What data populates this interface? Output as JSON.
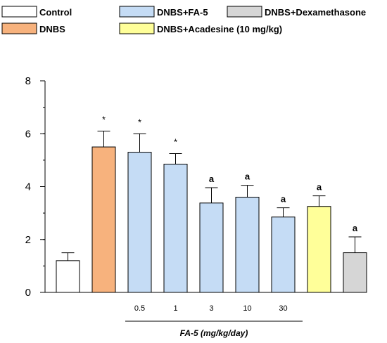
{
  "chart_data": {
    "type": "bar",
    "legend": [
      {
        "name": "Control",
        "color": "#ffffff"
      },
      {
        "name": "DNBS+FA-5",
        "color": "#c5dcf5"
      },
      {
        "name": "DNBS+Dexamethasone",
        "color": "#d6d6d6"
      },
      {
        "name": "DNBS",
        "color": "#f7b27d"
      },
      {
        "name": "DNBS+Acadesine (10 mg/kg)",
        "color": "#ffff99"
      }
    ],
    "bars": [
      {
        "group": "Control",
        "value": 1.2,
        "error": 0.3,
        "mark": "",
        "color": "#ffffff"
      },
      {
        "group": "DNBS",
        "value": 5.5,
        "error": 0.6,
        "mark": "*",
        "color": "#f7b27d"
      },
      {
        "group": "DNBS+FA-5",
        "dose": "0.5",
        "value": 5.3,
        "error": 0.7,
        "mark": "*",
        "color": "#c5dcf5"
      },
      {
        "group": "DNBS+FA-5",
        "dose": "1",
        "value": 4.85,
        "error": 0.4,
        "mark": "*",
        "color": "#c5dcf5"
      },
      {
        "group": "DNBS+FA-5",
        "dose": "3",
        "value": 3.38,
        "error": 0.58,
        "mark": "a",
        "color": "#c5dcf5"
      },
      {
        "group": "DNBS+FA-5",
        "dose": "10",
        "value": 3.6,
        "error": 0.45,
        "mark": "a",
        "color": "#c5dcf5"
      },
      {
        "group": "DNBS+FA-5",
        "dose": "30",
        "value": 2.85,
        "error": 0.35,
        "mark": "a",
        "color": "#c5dcf5"
      },
      {
        "group": "DNBS+Acadesine (10 mg/kg)",
        "value": 3.25,
        "error": 0.4,
        "mark": "a",
        "color": "#ffff99"
      },
      {
        "group": "DNBS+Dexamethasone",
        "value": 1.5,
        "error": 0.6,
        "mark": "a",
        "color": "#d6d6d6"
      }
    ],
    "xlabel": "FA-5 (mg/kg/day)",
    "ylabel": "",
    "ylim": [
      0,
      8
    ],
    "yticks": [
      0,
      2,
      4,
      6,
      8
    ],
    "grid": false,
    "legend_position": "top"
  }
}
